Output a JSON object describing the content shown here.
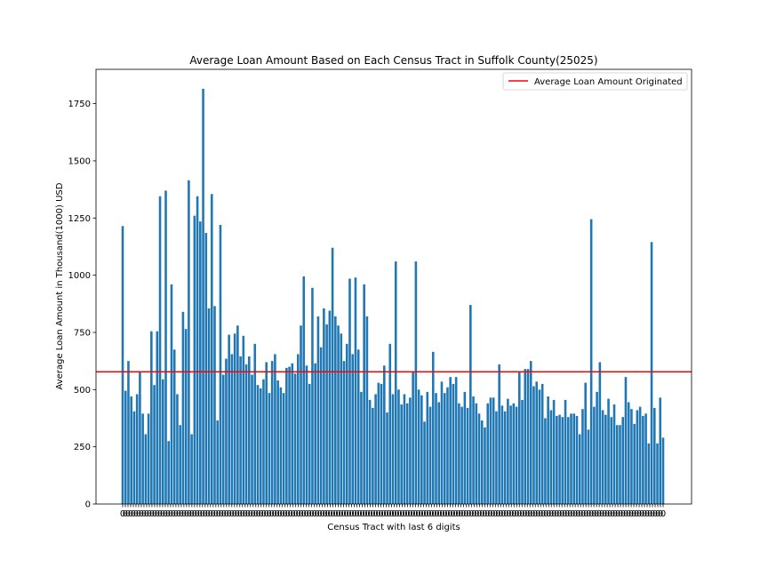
{
  "chart_data": {
    "type": "bar",
    "title": "Average Loan Amount Based on Each Census Tract in Suffolk County(25025)",
    "xlabel": "Census Tract with last 6 digits",
    "ylabel": "Average Loan Amount in Thousand(1000) USD",
    "ylim": [
      0,
      1900
    ],
    "yticks": [
      0,
      250,
      500,
      750,
      1000,
      1250,
      1500,
      1750
    ],
    "bar_color": "#1f77b4",
    "reference_line": {
      "label": "Average Loan Amount Originated",
      "value": 578,
      "color": "#ff0000"
    },
    "legend_position": "top-right",
    "values": [
      1215,
      495,
      625,
      470,
      405,
      480,
      575,
      395,
      305,
      395,
      755,
      520,
      755,
      1345,
      545,
      1370,
      275,
      960,
      675,
      480,
      345,
      840,
      765,
      1415,
      305,
      1260,
      1345,
      1235,
      1815,
      1185,
      855,
      1355,
      865,
      365,
      1220,
      565,
      635,
      740,
      655,
      745,
      780,
      645,
      735,
      610,
      645,
      565,
      700,
      520,
      505,
      545,
      620,
      485,
      625,
      655,
      540,
      510,
      485,
      595,
      600,
      615,
      570,
      655,
      780,
      995,
      605,
      525,
      945,
      615,
      820,
      685,
      855,
      785,
      845,
      1120,
      820,
      780,
      745,
      625,
      700,
      985,
      655,
      990,
      675,
      490,
      960,
      820,
      455,
      420,
      480,
      530,
      525,
      605,
      400,
      700,
      480,
      1060,
      500,
      435,
      480,
      440,
      465,
      575,
      1060,
      500,
      475,
      360,
      490,
      425,
      665,
      485,
      445,
      535,
      485,
      510,
      555,
      525,
      555,
      440,
      425,
      490,
      420,
      870,
      470,
      440,
      395,
      365,
      335,
      440,
      465,
      465,
      405,
      610,
      430,
      405,
      460,
      430,
      440,
      425,
      575,
      455,
      590,
      590,
      625,
      515,
      535,
      500,
      525,
      375,
      470,
      410,
      455,
      385,
      390,
      380,
      455,
      380,
      395,
      395,
      385,
      305,
      415,
      530,
      325,
      1245,
      425,
      490,
      620,
      410,
      390,
      460,
      380,
      435,
      345,
      345,
      380,
      555,
      445,
      415,
      350,
      410,
      425,
      385,
      395,
      265,
      1145,
      420,
      265,
      465,
      290
    ],
    "x_tick_labels": [
      "0",
      "0",
      "0",
      "0",
      "0",
      "0",
      "0",
      "0",
      "0",
      "0",
      "0",
      "0",
      "0",
      "0",
      "0",
      "0",
      "0",
      "0",
      "0",
      "0",
      "0",
      "0",
      "0",
      "0",
      "0",
      "0",
      "0",
      "0",
      "0",
      "0",
      "0",
      "0",
      "0",
      "0",
      "0",
      "0",
      "0",
      "0",
      "0",
      "0",
      "0",
      "0",
      "0",
      "0",
      "0",
      "0",
      "0",
      "0",
      "0",
      "0",
      "0",
      "0",
      "0",
      "0",
      "0",
      "0",
      "0",
      "0",
      "0",
      "0",
      "0",
      "0",
      "0",
      "0",
      "0",
      "0",
      "0",
      "0",
      "0",
      "0",
      "0",
      "0",
      "0",
      "0",
      "0",
      "0",
      "0",
      "0",
      "0",
      "0",
      "0",
      "0",
      "0",
      "0",
      "0",
      "0",
      "0",
      "0",
      "0",
      "0",
      "0",
      "0",
      "0",
      "0",
      "0",
      "0",
      "0",
      "0",
      "0",
      "0",
      "0",
      "0",
      "0",
      "0",
      "0",
      "0",
      "0",
      "0",
      "0",
      "0",
      "0",
      "0",
      "0",
      "0",
      "0",
      "0",
      "0",
      "0",
      "0",
      "0",
      "0",
      "0",
      "0",
      "0",
      "0",
      "0",
      "0",
      "0",
      "0",
      "0",
      "0",
      "0",
      "0",
      "0",
      "0",
      "0",
      "0",
      "0",
      "0",
      "0",
      "0",
      "0",
      "0",
      "0",
      "0",
      "0",
      "0",
      "0",
      "0",
      "0",
      "0",
      "0",
      "0",
      "0",
      "0",
      "0",
      "0",
      "0",
      "0",
      "0",
      "0",
      "0",
      "0",
      "0",
      "0",
      "0",
      "0",
      "0",
      "0",
      "0",
      "0",
      "0",
      "0",
      "0",
      "0",
      "0",
      "0",
      "0",
      "0",
      "0",
      "0",
      "0",
      "0",
      "0",
      "0",
      "0",
      "0",
      "0",
      "0",
      "0",
      "0",
      "0",
      "0",
      "0",
      "0",
      "0",
      "0",
      "0",
      "0",
      "0",
      "0",
      "0",
      "0",
      "0"
    ]
  }
}
